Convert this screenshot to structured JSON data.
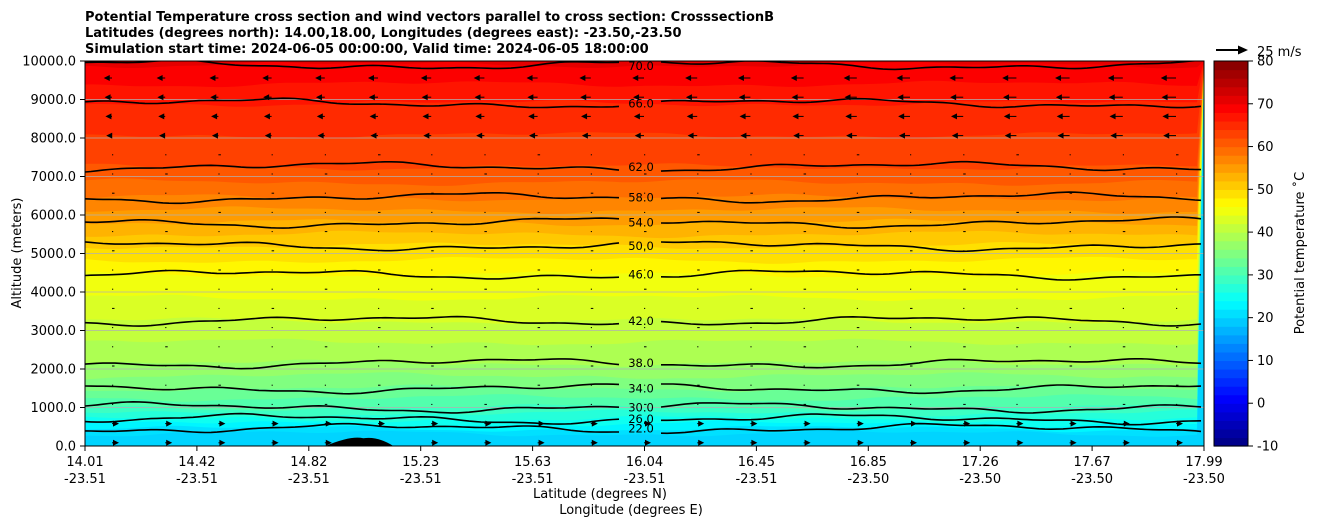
{
  "chart_data": {
    "type": "contour",
    "title_lines": [
      "Potential Temperature cross section and wind vectors parallel to cross section: CrosssectionB",
      "Latitudes (degrees north): 14.00,18.00, Longitudes (degrees east): -23.50,-23.50",
      "Simulation start time: 2024-06-05 00:00:00, Valid time: 2024-06-05 18:00:00"
    ],
    "ylabel": "Altitude (meters)",
    "xlabel": "Latitude (degrees N)",
    "xlabel2": "Longitude (degrees E)",
    "ylim": [
      0,
      10000
    ],
    "yticks": [
      "0.0",
      "1000.0",
      "2000.0",
      "3000.0",
      "4000.0",
      "5000.0",
      "6000.0",
      "7000.0",
      "8000.0",
      "9000.0",
      "10000.0"
    ],
    "xticks": [
      {
        "lat": "14.01",
        "lon": "-23.51"
      },
      {
        "lat": "14.42",
        "lon": "-23.51"
      },
      {
        "lat": "14.82",
        "lon": "-23.51"
      },
      {
        "lat": "15.23",
        "lon": "-23.51"
      },
      {
        "lat": "15.63",
        "lon": "-23.51"
      },
      {
        "lat": "16.04",
        "lon": "-23.51"
      },
      {
        "lat": "16.45",
        "lon": "-23.51"
      },
      {
        "lat": "16.85",
        "lon": "-23.50"
      },
      {
        "lat": "17.26",
        "lon": "-23.50"
      },
      {
        "lat": "17.67",
        "lon": "-23.50"
      },
      {
        "lat": "17.99",
        "lon": "-23.50"
      }
    ],
    "colorbar": {
      "label": "Potential temperature $^\\circ$C",
      "label_display": "Potential temperature ˚C",
      "range": [
        -10,
        80
      ],
      "ticks": [
        "-10",
        "0",
        "10",
        "20",
        "30",
        "40",
        "50",
        "60",
        "70",
        "80"
      ],
      "cmap": "jet"
    },
    "contour_levels": [
      {
        "value": 22,
        "label": "22.0",
        "alt": 450
      },
      {
        "value": 26,
        "label": "26.0",
        "alt": 700
      },
      {
        "value": 30,
        "label": "30.0",
        "alt": 1000
      },
      {
        "value": 34,
        "label": "34.0",
        "alt": 1500
      },
      {
        "value": 38,
        "label": "38.0",
        "alt": 2150
      },
      {
        "value": 42,
        "label": "42.0",
        "alt": 3250
      },
      {
        "value": 46,
        "label": "46.0",
        "alt": 4450
      },
      {
        "value": 50,
        "label": "50.0",
        "alt": 5200
      },
      {
        "value": 54,
        "label": "54.0",
        "alt": 5800
      },
      {
        "value": 58,
        "label": "58.0",
        "alt": 6450
      },
      {
        "value": 62,
        "label": "62.0",
        "alt": 7250
      },
      {
        "value": 66,
        "label": "66.0",
        "alt": 8900
      },
      {
        "value": 70,
        "label": "70.0",
        "alt": 9900
      }
    ],
    "wind_key": "25 m/s",
    "terrain_peak": {
      "lat": 15.0,
      "alt": 200
    }
  }
}
